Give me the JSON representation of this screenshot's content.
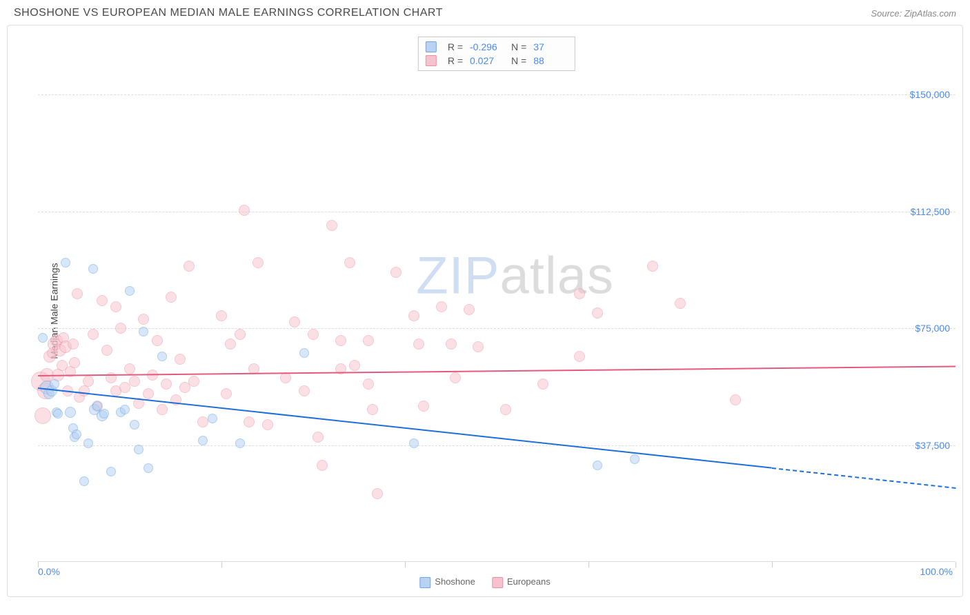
{
  "title": "SHOSHONE VS EUROPEAN MEDIAN MALE EARNINGS CORRELATION CHART",
  "source": "Source: ZipAtlas.com",
  "watermark_zip": "ZIP",
  "watermark_rest": "atlas",
  "y_axis_label": "Median Male Earnings",
  "chart": {
    "xlim": [
      0,
      100
    ],
    "ylim": [
      0,
      170000
    ],
    "x_min_label": "0.0%",
    "x_max_label": "100.0%",
    "x_tick_positions": [
      0,
      20,
      40,
      60,
      80,
      100
    ],
    "y_ticks": [
      {
        "v": 37500,
        "label": "$37,500"
      },
      {
        "v": 75000,
        "label": "$75,000"
      },
      {
        "v": 112500,
        "label": "$112,500"
      },
      {
        "v": 150000,
        "label": "$150,000"
      }
    ],
    "grid_color": "#dddddd",
    "background_color": "#ffffff",
    "bubble_border_width": 1
  },
  "series": {
    "shoshone": {
      "label": "Shoshone",
      "fill": "#b7d2f3",
      "stroke": "#6fa6e6",
      "fill_opacity": 0.55,
      "R": "-0.296",
      "N": "37",
      "trend": {
        "x1": 0,
        "y1": 56000,
        "x2": 100,
        "y2": 24000,
        "color": "#1e6fd9",
        "solid_until_x": 80
      },
      "points": [
        {
          "x": 0.5,
          "y": 72000,
          "r": 7
        },
        {
          "x": 1.0,
          "y": 56000,
          "r": 10
        },
        {
          "x": 1.2,
          "y": 54000,
          "r": 8
        },
        {
          "x": 1.5,
          "y": 55000,
          "r": 8
        },
        {
          "x": 1.8,
          "y": 57000,
          "r": 7
        },
        {
          "x": 2.0,
          "y": 48000,
          "r": 7
        },
        {
          "x": 2.2,
          "y": 47500,
          "r": 7
        },
        {
          "x": 3.0,
          "y": 96000,
          "r": 7
        },
        {
          "x": 3.5,
          "y": 48000,
          "r": 8
        },
        {
          "x": 3.8,
          "y": 43000,
          "r": 7
        },
        {
          "x": 4.0,
          "y": 40000,
          "r": 7
        },
        {
          "x": 4.2,
          "y": 41000,
          "r": 7
        },
        {
          "x": 5.0,
          "y": 26000,
          "r": 7
        },
        {
          "x": 5.5,
          "y": 38000,
          "r": 7
        },
        {
          "x": 6.0,
          "y": 94000,
          "r": 7
        },
        {
          "x": 6.2,
          "y": 49000,
          "r": 8
        },
        {
          "x": 6.5,
          "y": 50000,
          "r": 7
        },
        {
          "x": 7.0,
          "y": 47000,
          "r": 8
        },
        {
          "x": 7.2,
          "y": 47500,
          "r": 7
        },
        {
          "x": 8.0,
          "y": 29000,
          "r": 7
        },
        {
          "x": 9.0,
          "y": 48000,
          "r": 7
        },
        {
          "x": 9.5,
          "y": 49000,
          "r": 7
        },
        {
          "x": 10.0,
          "y": 87000,
          "r": 7
        },
        {
          "x": 10.5,
          "y": 44000,
          "r": 7
        },
        {
          "x": 11.0,
          "y": 36000,
          "r": 7
        },
        {
          "x": 11.5,
          "y": 74000,
          "r": 7
        },
        {
          "x": 12.0,
          "y": 30000,
          "r": 7
        },
        {
          "x": 13.5,
          "y": 66000,
          "r": 7
        },
        {
          "x": 18.0,
          "y": 39000,
          "r": 7
        },
        {
          "x": 19.0,
          "y": 46000,
          "r": 7
        },
        {
          "x": 22.0,
          "y": 38000,
          "r": 7
        },
        {
          "x": 29.0,
          "y": 67000,
          "r": 7
        },
        {
          "x": 41.0,
          "y": 38000,
          "r": 7
        },
        {
          "x": 61.0,
          "y": 31000,
          "r": 7
        },
        {
          "x": 65.0,
          "y": 33000,
          "r": 7
        }
      ]
    },
    "europeans": {
      "label": "Europeans",
      "fill": "#f6c2cd",
      "stroke": "#eb8fa3",
      "fill_opacity": 0.5,
      "R": "0.027",
      "N": "88",
      "trend": {
        "x1": 0,
        "y1": 60000,
        "x2": 100,
        "y2": 63000,
        "color": "#e45a7d",
        "solid_until_x": 100
      },
      "points": [
        {
          "x": 0.3,
          "y": 58000,
          "r": 14
        },
        {
          "x": 0.5,
          "y": 47000,
          "r": 12
        },
        {
          "x": 0.8,
          "y": 55000,
          "r": 12
        },
        {
          "x": 1.0,
          "y": 60000,
          "r": 10
        },
        {
          "x": 1.3,
          "y": 66000,
          "r": 9
        },
        {
          "x": 1.6,
          "y": 67000,
          "r": 8
        },
        {
          "x": 1.8,
          "y": 70000,
          "r": 10
        },
        {
          "x": 2.0,
          "y": 71000,
          "r": 9
        },
        {
          "x": 2.2,
          "y": 60000,
          "r": 9
        },
        {
          "x": 2.4,
          "y": 68000,
          "r": 9
        },
        {
          "x": 2.6,
          "y": 63000,
          "r": 8
        },
        {
          "x": 2.8,
          "y": 72000,
          "r": 8
        },
        {
          "x": 3.0,
          "y": 69000,
          "r": 9
        },
        {
          "x": 3.2,
          "y": 55000,
          "r": 8
        },
        {
          "x": 3.5,
          "y": 61000,
          "r": 8
        },
        {
          "x": 3.8,
          "y": 70000,
          "r": 8
        },
        {
          "x": 4.0,
          "y": 64000,
          "r": 8
        },
        {
          "x": 4.3,
          "y": 86000,
          "r": 8
        },
        {
          "x": 4.5,
          "y": 53000,
          "r": 8
        },
        {
          "x": 5.0,
          "y": 55000,
          "r": 8
        },
        {
          "x": 5.5,
          "y": 58000,
          "r": 8
        },
        {
          "x": 6.0,
          "y": 73000,
          "r": 8
        },
        {
          "x": 6.5,
          "y": 50000,
          "r": 8
        },
        {
          "x": 7.0,
          "y": 84000,
          "r": 8
        },
        {
          "x": 7.5,
          "y": 68000,
          "r": 8
        },
        {
          "x": 8.0,
          "y": 59000,
          "r": 8
        },
        {
          "x": 8.5,
          "y": 82000,
          "r": 8
        },
        {
          "x": 8.5,
          "y": 55000,
          "r": 8
        },
        {
          "x": 9.0,
          "y": 75000,
          "r": 8
        },
        {
          "x": 9.5,
          "y": 56000,
          "r": 8
        },
        {
          "x": 10.0,
          "y": 62000,
          "r": 8
        },
        {
          "x": 10.5,
          "y": 58000,
          "r": 8
        },
        {
          "x": 11.0,
          "y": 51000,
          "r": 8
        },
        {
          "x": 11.5,
          "y": 78000,
          "r": 8
        },
        {
          "x": 12.0,
          "y": 54000,
          "r": 8
        },
        {
          "x": 12.5,
          "y": 60000,
          "r": 8
        },
        {
          "x": 13.0,
          "y": 71000,
          "r": 8
        },
        {
          "x": 13.5,
          "y": 49000,
          "r": 8
        },
        {
          "x": 14.0,
          "y": 57000,
          "r": 8
        },
        {
          "x": 14.5,
          "y": 85000,
          "r": 8
        },
        {
          "x": 15.0,
          "y": 52000,
          "r": 8
        },
        {
          "x": 15.5,
          "y": 65000,
          "r": 8
        },
        {
          "x": 16.0,
          "y": 56000,
          "r": 8
        },
        {
          "x": 16.5,
          "y": 95000,
          "r": 8
        },
        {
          "x": 17.0,
          "y": 58000,
          "r": 8
        },
        {
          "x": 18.0,
          "y": 45000,
          "r": 8
        },
        {
          "x": 20.0,
          "y": 79000,
          "r": 8
        },
        {
          "x": 20.5,
          "y": 54000,
          "r": 8
        },
        {
          "x": 21.0,
          "y": 70000,
          "r": 8
        },
        {
          "x": 22.0,
          "y": 73000,
          "r": 8
        },
        {
          "x": 22.5,
          "y": 113000,
          "r": 8
        },
        {
          "x": 23.0,
          "y": 45000,
          "r": 8
        },
        {
          "x": 23.5,
          "y": 62000,
          "r": 8
        },
        {
          "x": 24.0,
          "y": 96000,
          "r": 8
        },
        {
          "x": 25.0,
          "y": 44000,
          "r": 8
        },
        {
          "x": 27.0,
          "y": 59000,
          "r": 8
        },
        {
          "x": 28.0,
          "y": 77000,
          "r": 8
        },
        {
          "x": 29.0,
          "y": 55000,
          "r": 8
        },
        {
          "x": 30.0,
          "y": 73000,
          "r": 8
        },
        {
          "x": 30.5,
          "y": 40000,
          "r": 8
        },
        {
          "x": 31.0,
          "y": 31000,
          "r": 8
        },
        {
          "x": 32.0,
          "y": 108000,
          "r": 8
        },
        {
          "x": 33.0,
          "y": 62000,
          "r": 8
        },
        {
          "x": 33.0,
          "y": 71000,
          "r": 8
        },
        {
          "x": 34.0,
          "y": 96000,
          "r": 8
        },
        {
          "x": 34.5,
          "y": 63000,
          "r": 8
        },
        {
          "x": 36.0,
          "y": 71000,
          "r": 8
        },
        {
          "x": 36.0,
          "y": 57000,
          "r": 8
        },
        {
          "x": 36.5,
          "y": 49000,
          "r": 8
        },
        {
          "x": 37.0,
          "y": 22000,
          "r": 8
        },
        {
          "x": 39.0,
          "y": 93000,
          "r": 8
        },
        {
          "x": 41.0,
          "y": 79000,
          "r": 8
        },
        {
          "x": 41.5,
          "y": 70000,
          "r": 8
        },
        {
          "x": 42.0,
          "y": 50000,
          "r": 8
        },
        {
          "x": 44.0,
          "y": 82000,
          "r": 8
        },
        {
          "x": 45.0,
          "y": 70000,
          "r": 8
        },
        {
          "x": 45.5,
          "y": 59000,
          "r": 8
        },
        {
          "x": 47.0,
          "y": 81000,
          "r": 8
        },
        {
          "x": 48.0,
          "y": 69000,
          "r": 8
        },
        {
          "x": 51.0,
          "y": 49000,
          "r": 8
        },
        {
          "x": 55.0,
          "y": 57000,
          "r": 8
        },
        {
          "x": 59.0,
          "y": 66000,
          "r": 8
        },
        {
          "x": 59.0,
          "y": 86000,
          "r": 8
        },
        {
          "x": 61.0,
          "y": 80000,
          "r": 8
        },
        {
          "x": 67.0,
          "y": 95000,
          "r": 8
        },
        {
          "x": 70.0,
          "y": 83000,
          "r": 8
        },
        {
          "x": 76.0,
          "y": 52000,
          "r": 8
        }
      ]
    }
  },
  "corr_legend": {
    "r_label": "R =",
    "n_label": "N ="
  },
  "x_legend_items": [
    "shoshone",
    "europeans"
  ]
}
